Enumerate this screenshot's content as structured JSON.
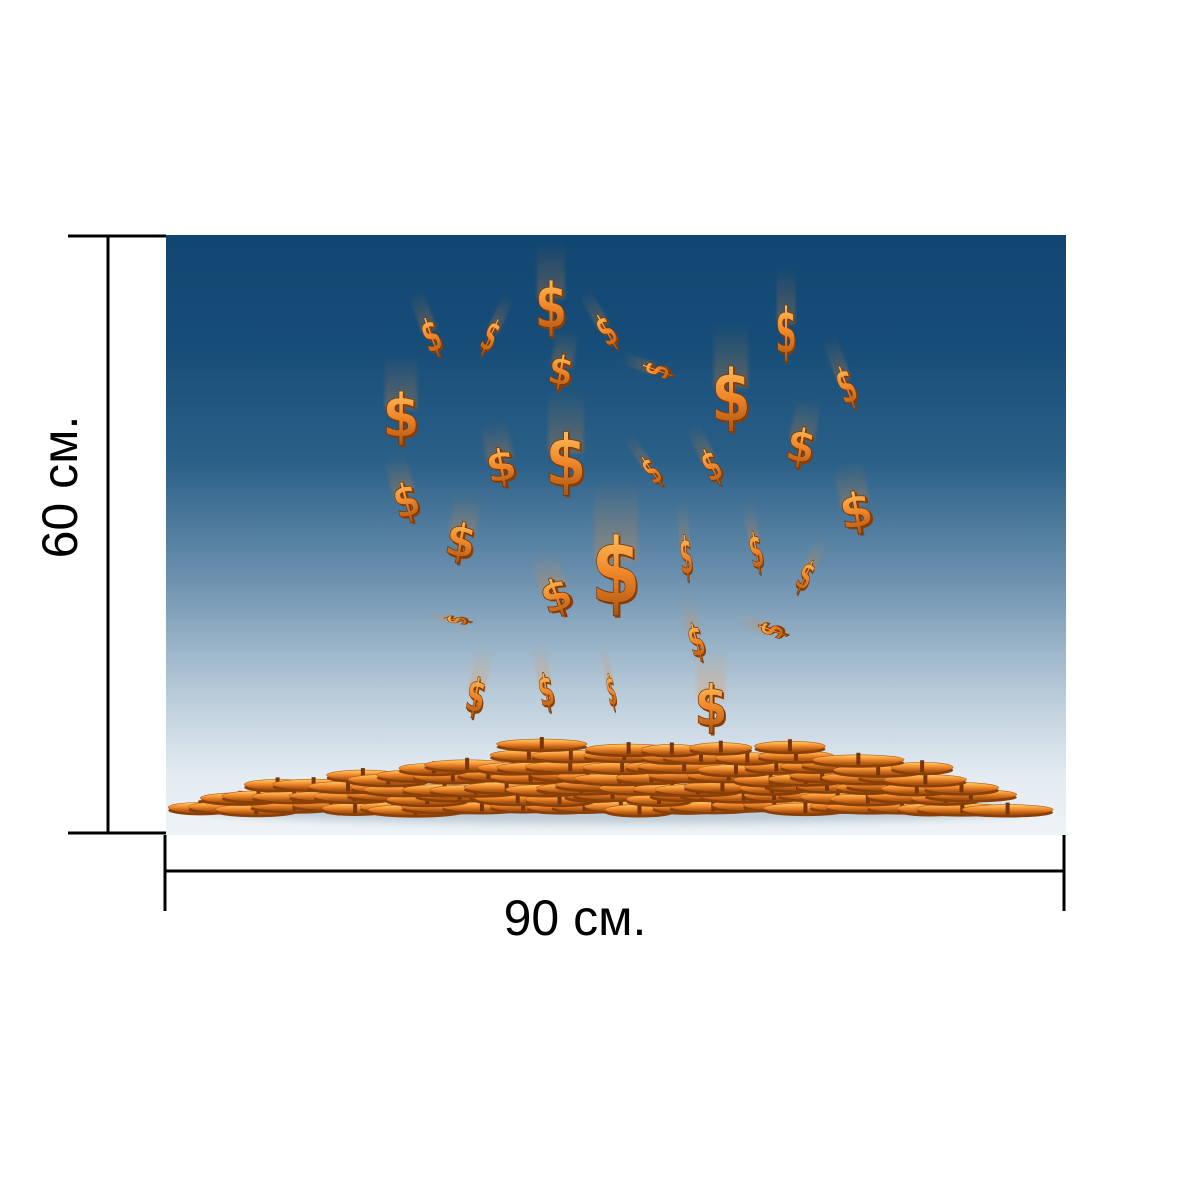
{
  "dimensions": {
    "width_label": "90 см.",
    "height_label": "60 см."
  },
  "artwork": {
    "subject": "Falling golden dollar signs over a pile of coins",
    "symbol": "$",
    "colors": {
      "sky_top": "#124672",
      "sky_bottom": "#eef3f6",
      "gold": "#f0872a",
      "gold_dark": "#a8520f",
      "dimension_lines": "#000000"
    }
  }
}
